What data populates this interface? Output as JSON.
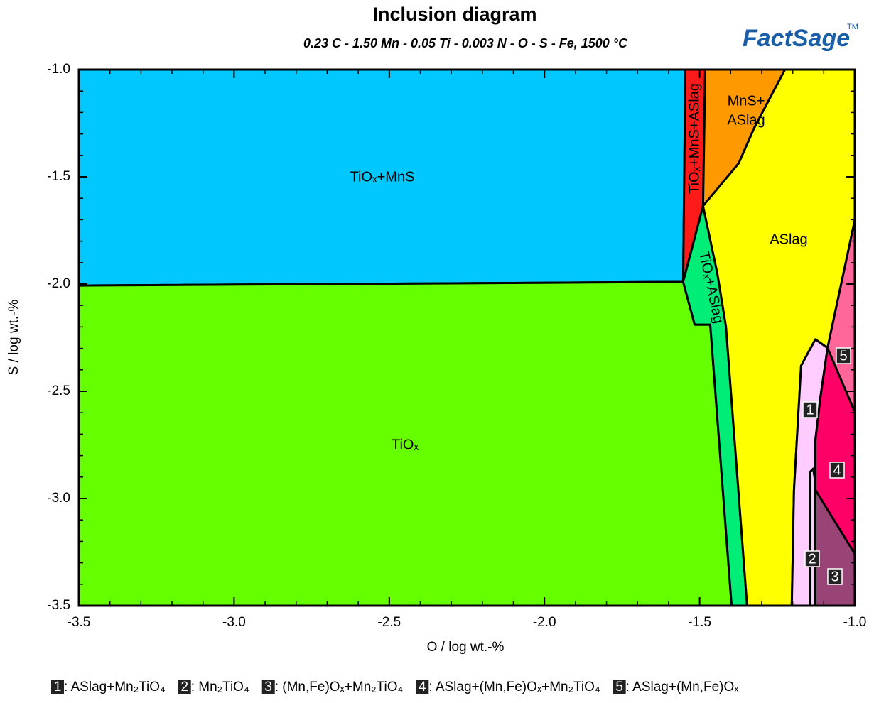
{
  "chart_data": {
    "type": "phase-diagram",
    "title": "Inclusion diagram",
    "subtitle": "0.23 C - 1.50 Mn - 0.05 Ti - 0.003 N - O - S - Fe, 1500 °C",
    "logo": "FactSage",
    "logo_mark": "TM",
    "xlabel": "O / log wt.-%",
    "ylabel": "S / log wt.-%",
    "xlim": [
      -3.5,
      -1.0
    ],
    "ylim": [
      -3.5,
      -1.0
    ],
    "xticks": [
      -3.5,
      {
        "value": -3.0,
        "label": "-3.0"
      },
      -2.5,
      {
        "value": -2.0,
        "label": "-2.0"
      },
      -1.5,
      {
        "value": -1.0,
        "label": "-1.0"
      }
    ],
    "yticks": [
      -3.5,
      {
        "value": -3.0,
        "label": "-3.0"
      },
      -2.5,
      {
        "value": -2.0,
        "label": "-2.0"
      },
      -1.5,
      {
        "value": -1.0,
        "label": "-1.0"
      }
    ],
    "xminorticks": [
      -3.4,
      -3.3,
      -3.2,
      -3.1,
      -2.9,
      -2.8,
      -2.7,
      -2.6,
      -2.4,
      -2.3,
      -2.2,
      -2.1,
      -1.9,
      -1.8,
      -1.7,
      -1.6,
      -1.4,
      -1.3,
      -1.2,
      -1.1
    ],
    "yminorticks": [
      -3.4,
      -3.3,
      -3.2,
      -3.1,
      -2.9,
      -2.8,
      -2.7,
      -2.6,
      -2.4,
      -2.3,
      -2.2,
      -2.1,
      -1.9,
      -1.8,
      -1.7,
      -1.6,
      -1.4,
      -1.3,
      -1.2,
      -1.1
    ],
    "regions": [
      {
        "label": "TiOₓ+MnS",
        "color": "#00c8ff",
        "points": [
          [
            -3.5,
            -1.0
          ],
          [
            -1.546,
            -1.0
          ],
          [
            -1.553,
            -1.99
          ],
          [
            -3.5,
            -2.007
          ]
        ]
      },
      {
        "label": "TiOₓ",
        "color": "#66ff00",
        "points": [
          [
            -3.5,
            -2.007
          ],
          [
            -1.553,
            -1.99
          ],
          [
            -1.516,
            -2.189
          ],
          [
            -1.466,
            -2.189
          ],
          [
            -1.397,
            -3.5
          ],
          [
            -3.5,
            -3.5
          ]
        ]
      },
      {
        "label": "TiOₓ+MnS+ASlag",
        "color": "#ff1a1a",
        "points": [
          [
            -1.546,
            -1.0
          ],
          [
            -1.482,
            -1.0
          ],
          [
            -1.489,
            -1.636
          ],
          [
            -1.553,
            -1.99
          ]
        ]
      },
      {
        "label": [
          "MnS+",
          "ASlag"
        ],
        "color": "#ff9900",
        "points": [
          [
            -1.482,
            -1.0
          ],
          [
            -1.225,
            -1.0
          ],
          [
            -1.324,
            -1.272
          ],
          [
            -1.374,
            -1.437
          ],
          [
            -1.489,
            -1.636
          ]
        ]
      },
      {
        "label": "TiOₓ+ASlag",
        "color": "#00ee77",
        "points": [
          [
            -1.489,
            -1.636
          ],
          [
            -1.443,
            -1.95
          ],
          [
            -1.415,
            -2.199
          ],
          [
            -1.347,
            -3.5
          ],
          [
            -1.397,
            -3.5
          ],
          [
            -1.466,
            -2.189
          ],
          [
            -1.516,
            -2.189
          ],
          [
            -1.553,
            -1.99
          ]
        ]
      },
      {
        "label": "ASlag",
        "color": "#ffff00",
        "points": [
          [
            -1.489,
            -1.636
          ],
          [
            -1.374,
            -1.437
          ],
          [
            -1.324,
            -1.272
          ],
          [
            -1.225,
            -1.0
          ],
          [
            -1.0,
            -1.0
          ],
          [
            -1.0,
            -1.702
          ],
          [
            -1.088,
            -2.298
          ],
          [
            -1.127,
            -2.258
          ],
          [
            -1.173,
            -2.381
          ],
          [
            -1.196,
            -2.96
          ],
          [
            -1.203,
            -3.5
          ],
          [
            -1.347,
            -3.5
          ],
          [
            -1.415,
            -2.199
          ],
          [
            -1.443,
            -1.95
          ]
        ]
      },
      {
        "label": "1",
        "legend": ": ASlag+Mn₂TiO₄",
        "color": "#ffccff",
        "points": [
          [
            -1.203,
            -3.5
          ],
          [
            -1.196,
            -2.96
          ],
          [
            -1.173,
            -2.381
          ],
          [
            -1.127,
            -2.258
          ],
          [
            -1.088,
            -2.298
          ],
          [
            -1.111,
            -2.53
          ],
          [
            -1.127,
            -2.728
          ],
          [
            -1.127,
            -2.927
          ],
          [
            -1.134,
            -2.861
          ],
          [
            -1.145,
            -2.877
          ],
          [
            -1.145,
            -3.5
          ]
        ]
      },
      {
        "label": "2",
        "legend": ": Mn₂TiO₄",
        "color": "#f4d4f4",
        "points": [
          [
            -1.145,
            -3.5
          ],
          [
            -1.145,
            -2.877
          ],
          [
            -1.134,
            -2.861
          ],
          [
            -1.127,
            -2.927
          ],
          [
            -1.127,
            -3.5
          ]
        ]
      },
      {
        "label": "3",
        "legend": ": (Mn,Fe)Oₓ+Mn₂TiO₄",
        "color": "#994477",
        "points": [
          [
            -1.127,
            -2.96
          ],
          [
            -1.0,
            -3.258
          ],
          [
            -1.0,
            -3.5
          ],
          [
            -1.127,
            -3.5
          ]
        ]
      },
      {
        "label": "4",
        "legend": ": ASlag+(Mn,Fe)Oₓ+Mn₂TiO₄",
        "color": "#ff0066",
        "points": [
          [
            -1.088,
            -2.298
          ],
          [
            -1.0,
            -2.596
          ],
          [
            -1.0,
            -3.258
          ],
          [
            -1.127,
            -2.96
          ],
          [
            -1.127,
            -2.728
          ],
          [
            -1.111,
            -2.53
          ]
        ]
      },
      {
        "label": "5",
        "legend": ": ASlag+(Mn,Fe)Oₓ",
        "color": "#ff6699",
        "points": [
          [
            -1.0,
            -1.702
          ],
          [
            -1.0,
            -2.596
          ],
          [
            -1.088,
            -2.298
          ]
        ]
      }
    ]
  }
}
